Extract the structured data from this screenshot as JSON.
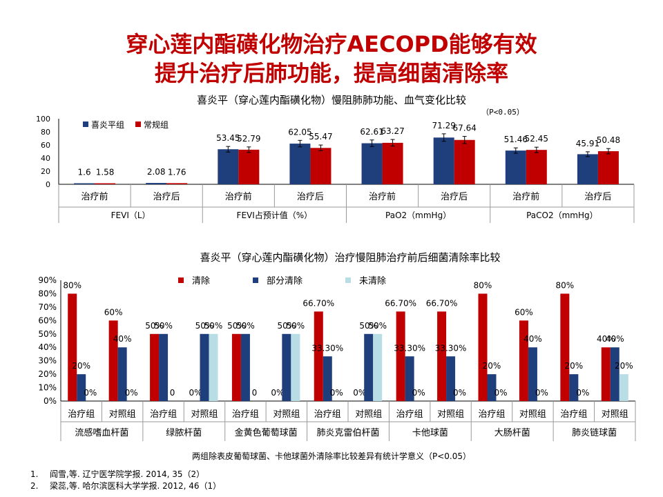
{
  "slide": {
    "title_line1": "穿心莲内酯磺化物治疗AECOPD能够有效",
    "title_line2": "提升治疗后肺功能，提高细菌清除率",
    "footnote": "两组除表皮葡萄球菌、卡他球菌外清除率比较差异有统计学意义（P<0.05）",
    "references": [
      {
        "num": "1.",
        "text": "阎雪,等. 辽宁医学院学报. 2014, 35（2）"
      },
      {
        "num": "2.",
        "text": "梁蕊,等. 哈尔滨医科大学学报. 2012, 46（1）"
      }
    ]
  },
  "colors": {
    "red": "#c00000",
    "navy": "#1f3e7c",
    "light": "#b8dde4",
    "title": "#c00000"
  },
  "chart_data": [
    {
      "type": "bar",
      "title": "喜炎平（穿心莲内酯磺化物）慢阻肺肺功能、血气变化比较",
      "subtitle": "（P<0.05）",
      "ylim": [
        0,
        100
      ],
      "yticks": [
        "0",
        "20",
        "40",
        "60",
        "80",
        "100"
      ],
      "categories": [
        "治疗前",
        "治疗后",
        "治疗前",
        "治疗后",
        "治疗前",
        "治疗后",
        "治疗前",
        "治疗后"
      ],
      "groups": [
        "FEVI（L）",
        "FEVI占预计值（%）",
        "PaO2（mmHg）",
        "PaCO2（mmHg）"
      ],
      "legend_position": "top-left",
      "series": [
        {
          "name": "喜炎平组",
          "color": "#1f3e7c",
          "values": [
            1.6,
            2.08,
            53.45,
            62.05,
            62.61,
            71.29,
            51.46,
            45.91
          ],
          "labels": [
            "1.6",
            "2.08",
            "53.45",
            "62.05",
            "62.61",
            "71.29",
            "51.46",
            "45.91"
          ]
        },
        {
          "name": "常规组",
          "color": "#c00000",
          "values": [
            1.58,
            1.76,
            52.79,
            55.47,
            63.27,
            67.64,
            52.45,
            50.48
          ],
          "labels": [
            "1.58",
            "1.76",
            "52.79",
            "55.47",
            "63.27",
            "67.64",
            "52.45",
            "50.48"
          ]
        }
      ]
    },
    {
      "type": "bar",
      "title": "喜炎平（穿心莲内酯磺化物）治疗慢阻肺治疗前后细菌清除率比较",
      "ylim": [
        0,
        90
      ],
      "yticks": [
        "0%",
        "10%",
        "20%",
        "30%",
        "40%",
        "50%",
        "60%",
        "70%",
        "80%",
        "90%"
      ],
      "categories": [
        "治疗组",
        "对照组",
        "治疗组",
        "对照组",
        "治疗组",
        "对照组",
        "治疗组",
        "对照组",
        "治疗组",
        "对照组",
        "治疗组",
        "对照组",
        "治疗组",
        "对照组"
      ],
      "groups": [
        "流感嗜血杆菌",
        "绿脓杆菌",
        "金黄色葡萄球菌",
        "肺炎克雷伯杆菌",
        "卡他球菌",
        "大肠杆菌",
        "肺炎链球菌"
      ],
      "legend_position": "top",
      "series": [
        {
          "name": "清除",
          "color": "#c00000",
          "values": [
            80,
            60,
            50,
            0,
            50,
            0,
            66.7,
            0,
            66.7,
            66.7,
            80,
            60,
            80,
            40
          ],
          "labels": [
            "80%",
            "60%",
            "50%",
            "0%",
            "50%",
            "0%",
            "66.70%",
            "0%",
            "66.70%",
            "66.70%",
            "80%",
            "60%",
            "80%",
            "40%"
          ]
        },
        {
          "name": "部分清除",
          "color": "#1f3e7c",
          "values": [
            20,
            40,
            50,
            50,
            50,
            50,
            33.3,
            50,
            33.3,
            33.3,
            20,
            40,
            20,
            40
          ],
          "labels": [
            "20%",
            "40%",
            "50%",
            "50%",
            "50%",
            "50%",
            "33.30%",
            "50%",
            "33.30%",
            "33.30%",
            "20%",
            "40%",
            "20%",
            "40%"
          ]
        },
        {
          "name": "未清除",
          "color": "#b8dde4",
          "values": [
            0,
            0,
            0,
            50,
            0,
            50,
            0,
            50,
            0,
            0,
            0,
            0,
            0,
            20
          ],
          "labels": [
            "0%",
            "0%",
            "0",
            "50%",
            "0",
            "50%",
            "0%",
            "50%",
            "0%",
            "0%",
            "0%",
            "0%",
            "0%",
            "20%"
          ]
        }
      ]
    }
  ]
}
